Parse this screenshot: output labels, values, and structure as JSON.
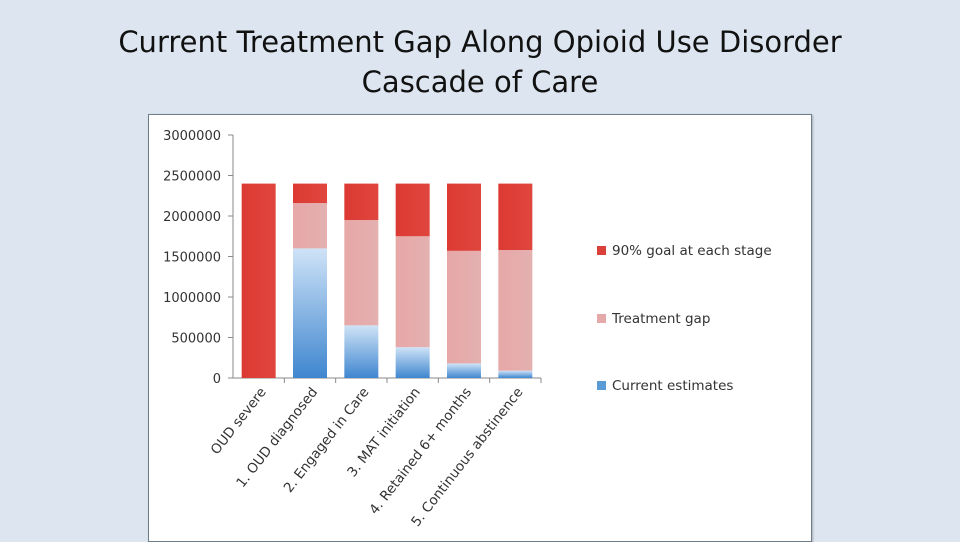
{
  "slide": {
    "title_line1": "Current Treatment Gap Along Opioid Use Disorder",
    "title_line2": "Cascade of Care"
  },
  "chart_data": {
    "type": "bar",
    "stacked": true,
    "title": "",
    "xlabel": "",
    "ylabel": "",
    "ylim": [
      0,
      3000000
    ],
    "yticks": [
      0,
      500000,
      1000000,
      1500000,
      2000000,
      2500000,
      3000000
    ],
    "ytick_labels": [
      "0",
      "500000",
      "1000000",
      "1500000",
      "2000000",
      "2500000",
      "3000000"
    ],
    "categories": [
      "OUD severe",
      "1. OUD diagnosed",
      "2. Engaged in Care",
      "3. MAT initiation",
      "4. Retained 6+ months",
      "5. Continuous abstinence"
    ],
    "series": [
      {
        "name": "Current estimates",
        "color": "#5b9bd5",
        "values": [
          0,
          1600000,
          650000,
          380000,
          180000,
          90000
        ]
      },
      {
        "name": "Treatment gap",
        "color": "#e5a9a9",
        "values": [
          0,
          560000,
          1300000,
          1370000,
          1390000,
          1490000
        ]
      },
      {
        "name": "90% goal at each stage",
        "color": "#d9403a",
        "values": [
          2400000,
          240000,
          450000,
          650000,
          830000,
          820000
        ]
      }
    ],
    "legend_order": [
      "90% goal at each stage",
      "Treatment gap",
      "Current estimates"
    ],
    "legend_position": "right",
    "grid": false
  }
}
